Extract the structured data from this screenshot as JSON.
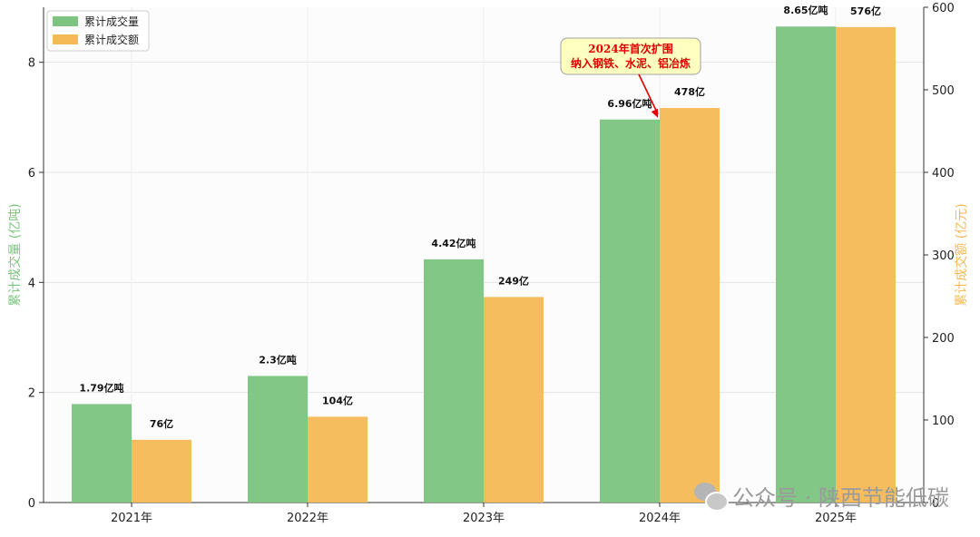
{
  "chart_data": {
    "type": "bar",
    "categories": [
      "2021年",
      "2022年",
      "2023年",
      "2024年",
      "2025年"
    ],
    "series": [
      {
        "name": "累计成交量",
        "axis": "left",
        "color": "#7cc47f",
        "values": [
          1.79,
          2.3,
          4.42,
          6.96,
          8.65
        ],
        "labels": [
          "1.79亿吨",
          "2.3亿吨",
          "4.42亿吨",
          "6.96亿吨",
          "8.65亿吨"
        ]
      },
      {
        "name": "累计成交额",
        "axis": "right",
        "color": "#f5b955",
        "values": [
          76,
          104,
          249,
          478,
          576
        ],
        "labels": [
          "76亿",
          "104亿",
          "249亿",
          "478亿",
          "576亿"
        ]
      }
    ],
    "ylabel_left": "累计成交量 (亿吨)",
    "ylabel_right": "累计成交额 (亿元)",
    "ylim_left": [
      0,
      9
    ],
    "ylim_right": [
      0,
      600
    ],
    "yticks_left": [
      "0",
      "2",
      "4",
      "6",
      "8"
    ],
    "yticks_right": [
      "0",
      "100",
      "200",
      "300",
      "400",
      "500",
      "600"
    ],
    "grid": true,
    "legend_position": "top-left",
    "annotation": {
      "lines": [
        "2024年首次扩围",
        "纳入钢铁、水泥、铝冶炼"
      ],
      "target_category": "2024年",
      "target_series": 0,
      "text_color": "#e00000",
      "box_color": "#ffffc0"
    }
  },
  "watermark": {
    "icon": "wechat-icon",
    "text": "公众号 · 陕西节能低碳"
  }
}
